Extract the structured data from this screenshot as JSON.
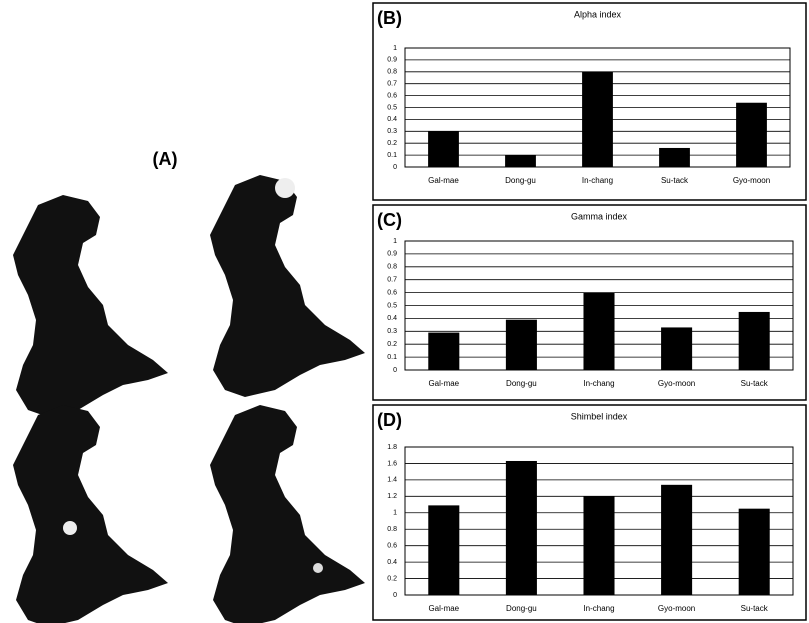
{
  "maps": {
    "label": "(A)"
  },
  "chart_data": [
    {
      "type": "bar",
      "panel": "(B)",
      "title": "Alpha index",
      "categories": [
        "Gal-mae",
        "Dong-gu",
        "In-chang",
        "Su-tack",
        "Gyo-moon"
      ],
      "values": [
        0.3,
        0.1,
        0.8,
        0.16,
        0.54
      ],
      "color": "#000000",
      "ylim": [
        0,
        1
      ],
      "yticks": [
        0,
        0.1,
        0.2,
        0.3,
        0.4,
        0.5,
        0.6,
        0.7,
        0.8,
        0.9,
        1
      ],
      "grid": true
    },
    {
      "type": "bar",
      "panel": "(C)",
      "title": "Gamma index",
      "categories": [
        "Gal-mae",
        "Dong-gu",
        "In-chang",
        "Gyo-moon",
        "Su-tack"
      ],
      "values": [
        0.29,
        0.39,
        0.6,
        0.33,
        0.45
      ],
      "color": "#000000",
      "ylim": [
        0,
        1
      ],
      "yticks": [
        0,
        0.1,
        0.2,
        0.3,
        0.4,
        0.5,
        0.6,
        0.7,
        0.8,
        0.9,
        1
      ],
      "grid": true
    },
    {
      "type": "bar",
      "panel": "(D)",
      "title": "Shimbel index",
      "categories": [
        "Gal-mae",
        "Dong-gu",
        "In-chang",
        "Gyo-moon",
        "Su-tack"
      ],
      "values": [
        1.09,
        1.63,
        1.2,
        1.34,
        1.05
      ],
      "color": "#000000",
      "ylim": [
        0,
        1.8
      ],
      "yticks": [
        0,
        0.2,
        0.4,
        0.6,
        0.8,
        1,
        1.2,
        1.4,
        1.6,
        1.8
      ],
      "grid": true
    }
  ]
}
